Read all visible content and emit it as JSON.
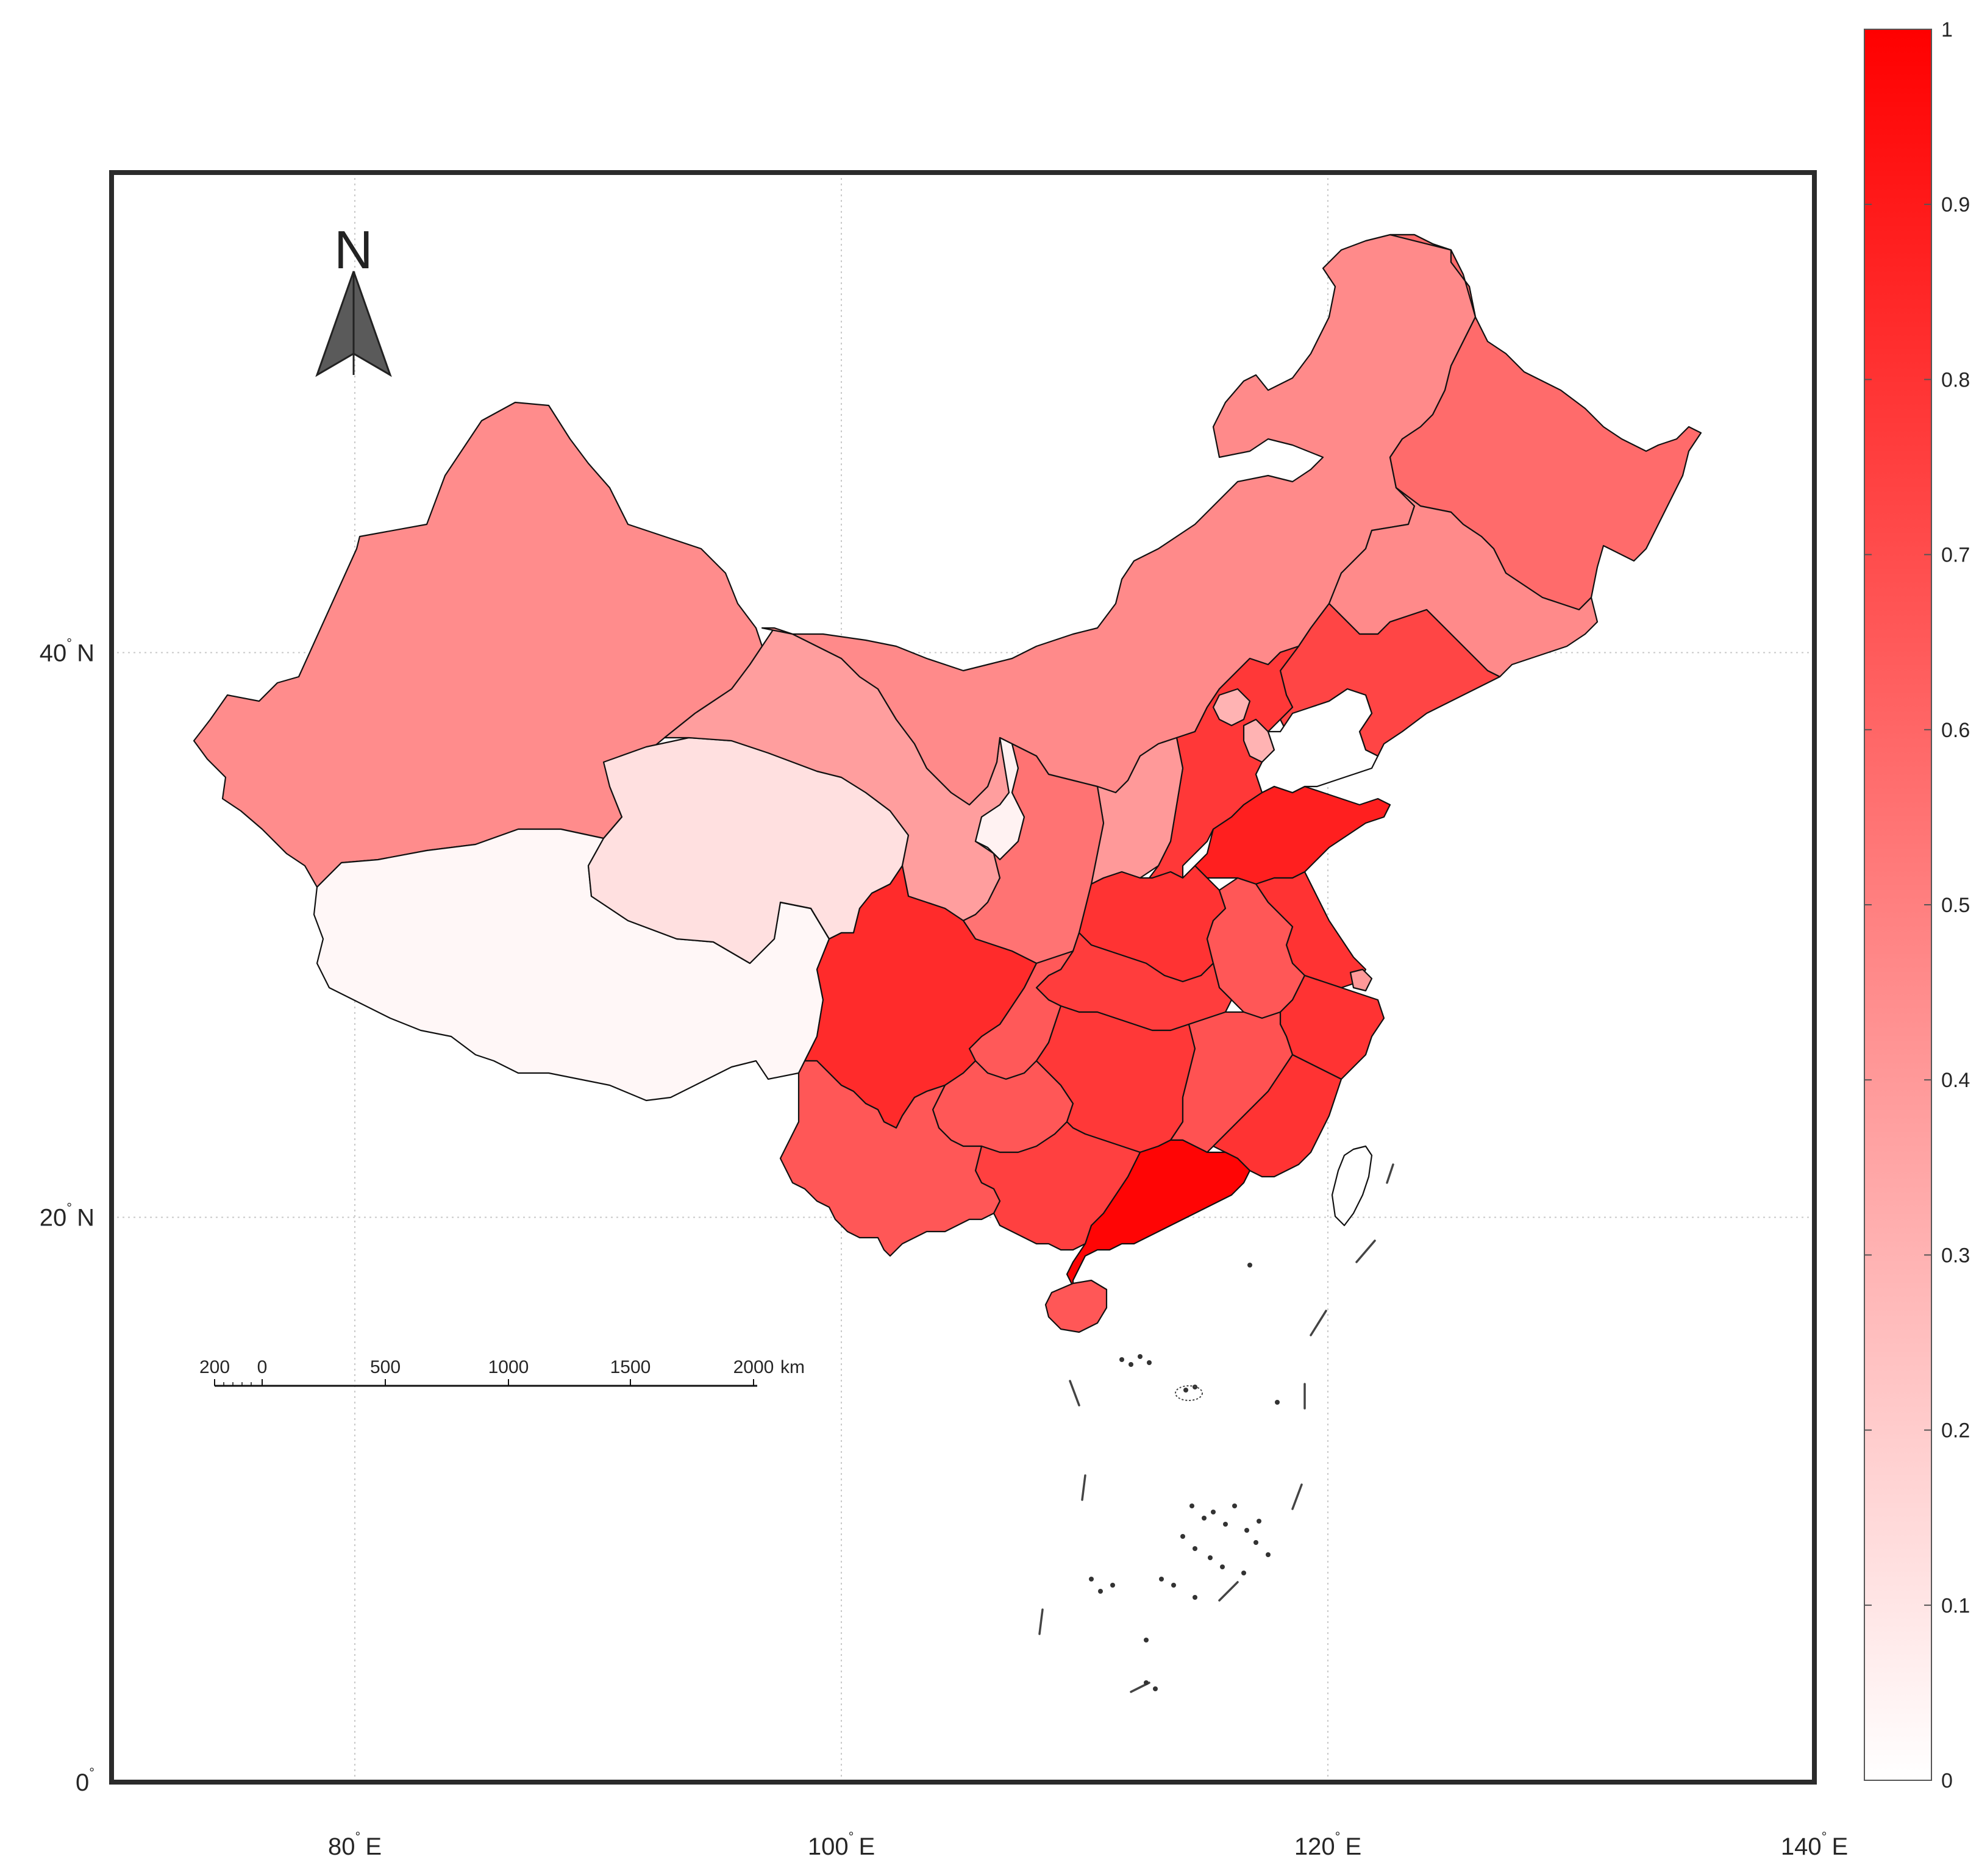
{
  "map": {
    "lon_ticks": [
      {
        "value": 80,
        "label": "80",
        "hemi": "E"
      },
      {
        "value": 100,
        "label": "100",
        "hemi": "E"
      },
      {
        "value": 120,
        "label": "120",
        "hemi": "E"
      },
      {
        "value": 140,
        "label": "140",
        "hemi": "E"
      }
    ],
    "lat_ticks": [
      {
        "value": 40,
        "label": "40",
        "hemi": "N"
      },
      {
        "value": 20,
        "label": "20",
        "hemi": "N"
      },
      {
        "value": 0,
        "label": "0",
        "hemi": ""
      }
    ],
    "degree_symbol": "°",
    "lon_range": [
      70,
      140
    ],
    "lat_range": [
      0,
      57
    ],
    "grid": true,
    "north_arrow_label": "N",
    "scale_bar": {
      "labels": [
        "200",
        "0",
        "500",
        "1000",
        "1500",
        "2000"
      ],
      "unit": "km"
    },
    "colorbar": {
      "ticks": [
        "0",
        "0.1",
        "0.2",
        "0.3",
        "0.4",
        "0.5",
        "0.6",
        "0.7",
        "0.8",
        "0.9",
        "1"
      ],
      "range": [
        0,
        1
      ],
      "color_low": "#ffffff",
      "color_high": "#ff0000",
      "placement": "right"
    },
    "regions": [
      {
        "name": "xinjiang",
        "value": 0.45
      },
      {
        "name": "tibet",
        "value": 0.03
      },
      {
        "name": "qinghai",
        "value": 0.12
      },
      {
        "name": "gansu",
        "value": 0.38
      },
      {
        "name": "inner-mongolia",
        "value": 0.46
      },
      {
        "name": "heilongjiang",
        "value": 0.58
      },
      {
        "name": "jilin",
        "value": 0.46
      },
      {
        "name": "liaoning",
        "value": 0.73
      },
      {
        "name": "beijing",
        "value": 0.3
      },
      {
        "name": "tianjin",
        "value": 0.3
      },
      {
        "name": "hebei",
        "value": 0.78
      },
      {
        "name": "shanxi",
        "value": 0.4
      },
      {
        "name": "ningxia",
        "value": 0.05
      },
      {
        "name": "shaanxi",
        "value": 0.55
      },
      {
        "name": "shandong",
        "value": 0.88
      },
      {
        "name": "henan",
        "value": 0.8
      },
      {
        "name": "jiangsu",
        "value": 0.8
      },
      {
        "name": "anhui",
        "value": 0.66
      },
      {
        "name": "shanghai",
        "value": 0.4
      },
      {
        "name": "zhejiang",
        "value": 0.8
      },
      {
        "name": "hubei",
        "value": 0.76
      },
      {
        "name": "chongqing",
        "value": 0.65
      },
      {
        "name": "sichuan",
        "value": 0.83
      },
      {
        "name": "guizhou",
        "value": 0.66
      },
      {
        "name": "hunan",
        "value": 0.78
      },
      {
        "name": "jiangxi",
        "value": 0.68
      },
      {
        "name": "fujian",
        "value": 0.8
      },
      {
        "name": "guangdong",
        "value": 0.98
      },
      {
        "name": "guangxi",
        "value": 0.75
      },
      {
        "name": "yunnan",
        "value": 0.66
      },
      {
        "name": "hainan",
        "value": 0.66
      },
      {
        "name": "taiwan",
        "value": 0.0
      }
    ]
  }
}
